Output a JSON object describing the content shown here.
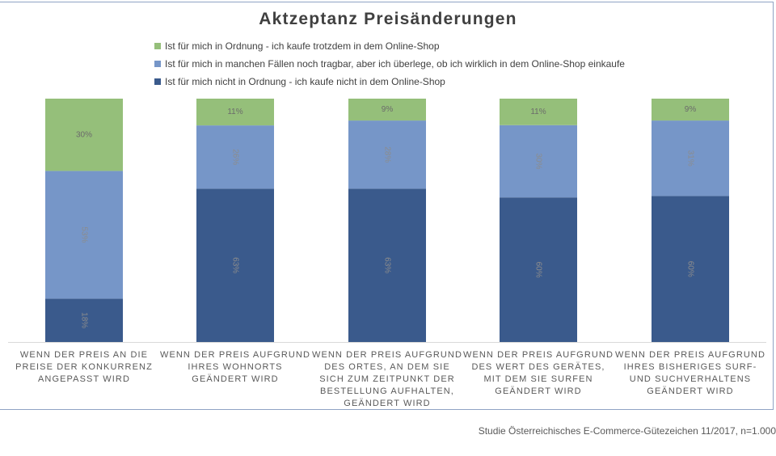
{
  "chart_data": {
    "type": "bar",
    "stacked": true,
    "title": "Aktzeptanz Preisänderungen",
    "categories": [
      "Wenn der Preis an die Preise der Konkurrenz angepasst wird",
      "Wenn der Preis aufgrund Ihres Wohnorts geändert wird",
      "Wenn der Preis aufgrund des Ortes, an dem Sie sich zum Zeitpunkt der Bestellung aufhalten, geändert wird",
      "Wenn der Preis aufgrund des Wert des Gerätes, mit dem Sie surfen geändert wird",
      "Wenn der Preis aufgrund Ihres bisheriges Surf- und Suchverhaltens geändert wird"
    ],
    "series": [
      {
        "name": "Ist für mich nicht in Ordnung - ich kaufe nicht in dem Online-Shop",
        "color": "#3a5a8c",
        "values": [
          18,
          63,
          63,
          60,
          60
        ]
      },
      {
        "name": "Ist für mich in manchen Fällen noch tragbar, aber ich überlege, ob ich wirklich in dem Online-Shop einkaufe",
        "color": "#7696c8",
        "values": [
          53,
          26,
          28,
          30,
          31
        ]
      },
      {
        "name": "Ist für mich in Ordnung - ich kaufe trotzdem in dem Online-Shop",
        "color": "#95bf7a",
        "values": [
          30,
          11,
          9,
          11,
          9
        ]
      }
    ],
    "value_format": "%",
    "legend": "top",
    "grid": false,
    "xlabel": "",
    "ylabel": ""
  },
  "source": "Studie Österreichisches E-Commerce-Gütezeichen 11/2017, n=1.000"
}
